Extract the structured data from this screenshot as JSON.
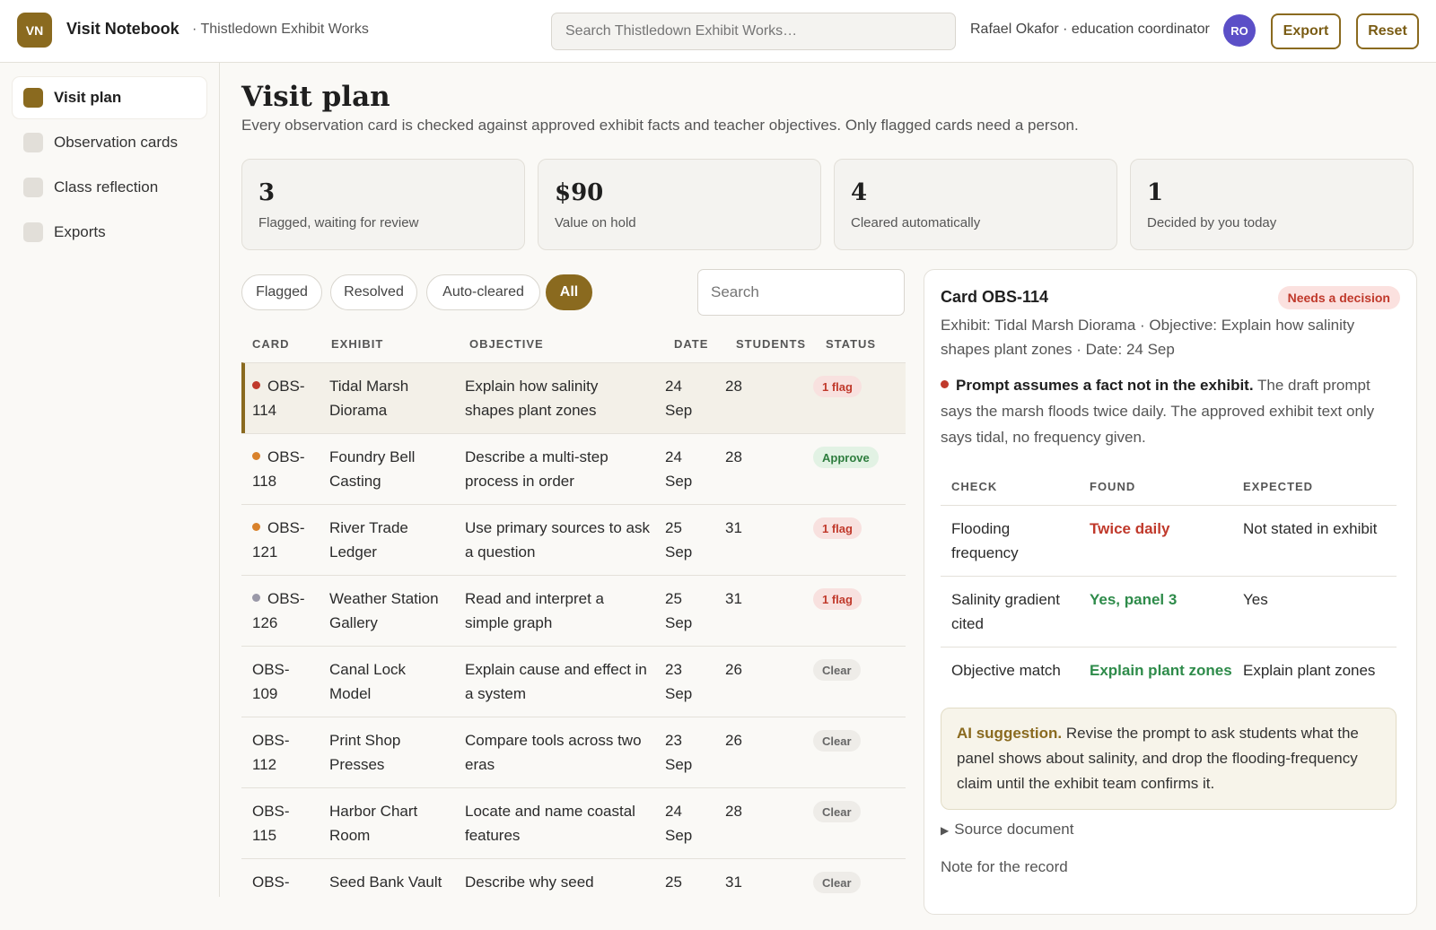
{
  "app": {
    "logo_text": "VN",
    "name": "Visit Notebook",
    "workspace": "· Thistledown Exhibit Works",
    "search_placeholder": "Search Thistledown Exhibit Works…",
    "user": "Rafael Okafor · education coordinator",
    "avatar_initials": "RO",
    "export_label": "Export",
    "reset_label": "Reset",
    "accent_color": "#8a6a1f"
  },
  "sidebar": {
    "items": [
      {
        "label": "Visit plan",
        "active": true
      },
      {
        "label": "Observation cards",
        "active": false
      },
      {
        "label": "Class reflection",
        "active": false
      },
      {
        "label": "Exports",
        "active": false
      }
    ]
  },
  "page": {
    "title": "Visit plan",
    "subtitle": "Every observation card is checked against approved exhibit facts and teacher objectives. Only flagged cards need a person."
  },
  "stats": [
    {
      "value": "3",
      "label": "Flagged, waiting for review"
    },
    {
      "value": "$90",
      "label": "Value on hold"
    },
    {
      "value": "4",
      "label": "Cleared automatically"
    },
    {
      "value": "1",
      "label": "Decided by you today"
    }
  ],
  "filters": [
    {
      "label": "Flagged",
      "active": false
    },
    {
      "label": "Resolved",
      "active": false
    },
    {
      "label": "Auto-cleared",
      "active": false
    },
    {
      "label": "All",
      "active": true
    }
  ],
  "table_search_placeholder": "Search",
  "table": {
    "headers": [
      "CARD",
      "EXHIBIT",
      "OBJECTIVE",
      "DATE",
      "STUDENTS",
      "STATUS"
    ],
    "rows": [
      {
        "card_a": "OBS-",
        "card_b": "114",
        "exhibit_a": "Tidal Marsh",
        "exhibit_b": "Diorama",
        "objective_a": "Explain how salinity",
        "objective_b": "shapes plant zones",
        "date_a": "24",
        "date_b": "Sep",
        "students": "28",
        "status": "1 flag",
        "status_kind": "flag",
        "dot_color": "#c0392b",
        "selected": true
      },
      {
        "card_a": "OBS-",
        "card_b": "118",
        "exhibit_a": "Foundry Bell",
        "exhibit_b": "Casting",
        "objective_a": "Describe a multi-step",
        "objective_b": "process in order",
        "date_a": "24",
        "date_b": "Sep",
        "students": "28",
        "status": "Approve",
        "status_kind": "approve",
        "dot_color": "#d9822b",
        "selected": false
      },
      {
        "card_a": "OBS-",
        "card_b": "121",
        "exhibit_a": "River Trade",
        "exhibit_b": "Ledger",
        "objective_a": "Use primary sources to ask",
        "objective_b": "a question",
        "date_a": "25",
        "date_b": "Sep",
        "students": "31",
        "status": "1 flag",
        "status_kind": "flag",
        "dot_color": "#d9822b",
        "selected": false
      },
      {
        "card_a": "OBS-",
        "card_b": "126",
        "exhibit_a": "Weather Station",
        "exhibit_b": "Gallery",
        "objective_a": "Read and interpret a",
        "objective_b": "simple graph",
        "date_a": "25",
        "date_b": "Sep",
        "students": "31",
        "status": "1 flag",
        "status_kind": "flag",
        "dot_color": "#9a99a8",
        "selected": false
      },
      {
        "card_a": "OBS-",
        "card_b": "109",
        "exhibit_a": "Canal Lock",
        "exhibit_b": "Model",
        "objective_a": "Explain cause and effect in",
        "objective_b": "a system",
        "date_a": "23",
        "date_b": "Sep",
        "students": "26",
        "status": "Clear",
        "status_kind": "clear",
        "dot_color": "",
        "selected": false
      },
      {
        "card_a": "OBS-",
        "card_b": "112",
        "exhibit_a": "Print Shop",
        "exhibit_b": "Presses",
        "objective_a": "Compare tools across two",
        "objective_b": "eras",
        "date_a": "23",
        "date_b": "Sep",
        "students": "26",
        "status": "Clear",
        "status_kind": "clear",
        "dot_color": "",
        "selected": false
      },
      {
        "card_a": "OBS-",
        "card_b": "115",
        "exhibit_a": "Harbor Chart",
        "exhibit_b": "Room",
        "objective_a": "Locate and name coastal",
        "objective_b": "features",
        "date_a": "24",
        "date_b": "Sep",
        "students": "28",
        "status": "Clear",
        "status_kind": "clear",
        "dot_color": "",
        "selected": false
      },
      {
        "card_a": "OBS-",
        "card_b": "",
        "exhibit_a": "Seed Bank Vault",
        "exhibit_b": "",
        "objective_a": "Describe why seed",
        "objective_b": "",
        "date_a": "25",
        "date_b": "",
        "students": "31",
        "status": "Clear",
        "status_kind": "clear",
        "dot_color": "",
        "selected": false
      }
    ]
  },
  "detail": {
    "title": "Card OBS-114",
    "badge": "Needs a decision",
    "meta": "Exhibit: Tidal Marsh Diorama · Objective: Explain how salinity shapes plant zones · Date: 24 Sep",
    "finding_title": "Prompt assumes a fact not in the exhibit.",
    "finding_body": "The draft prompt says the marsh floods twice daily. The approved exhibit text only says tidal, no frequency given.",
    "finding_dot_color": "#c0392b",
    "checks_headers": [
      "CHECK",
      "FOUND",
      "EXPECTED"
    ],
    "checks": [
      {
        "check_a": "Flooding",
        "check_b": "frequency",
        "found": "Twice daily",
        "found_kind": "bad",
        "expected": "Not stated in exhibit"
      },
      {
        "check_a": "Salinity gradient",
        "check_b": "cited",
        "found": "Yes, panel 3",
        "found_kind": "good",
        "expected": "Yes"
      },
      {
        "check_a": "Objective match",
        "check_b": "",
        "found": "Explain plant zones",
        "found_kind": "good",
        "expected": "Explain plant zones"
      }
    ],
    "ai_label": "AI suggestion.",
    "ai_text": "Revise the prompt to ask students what the panel shows about salinity, and drop the flooding-frequency claim until the exhibit team confirms it.",
    "source_label": "Source document",
    "note_label": "Note for the record"
  }
}
